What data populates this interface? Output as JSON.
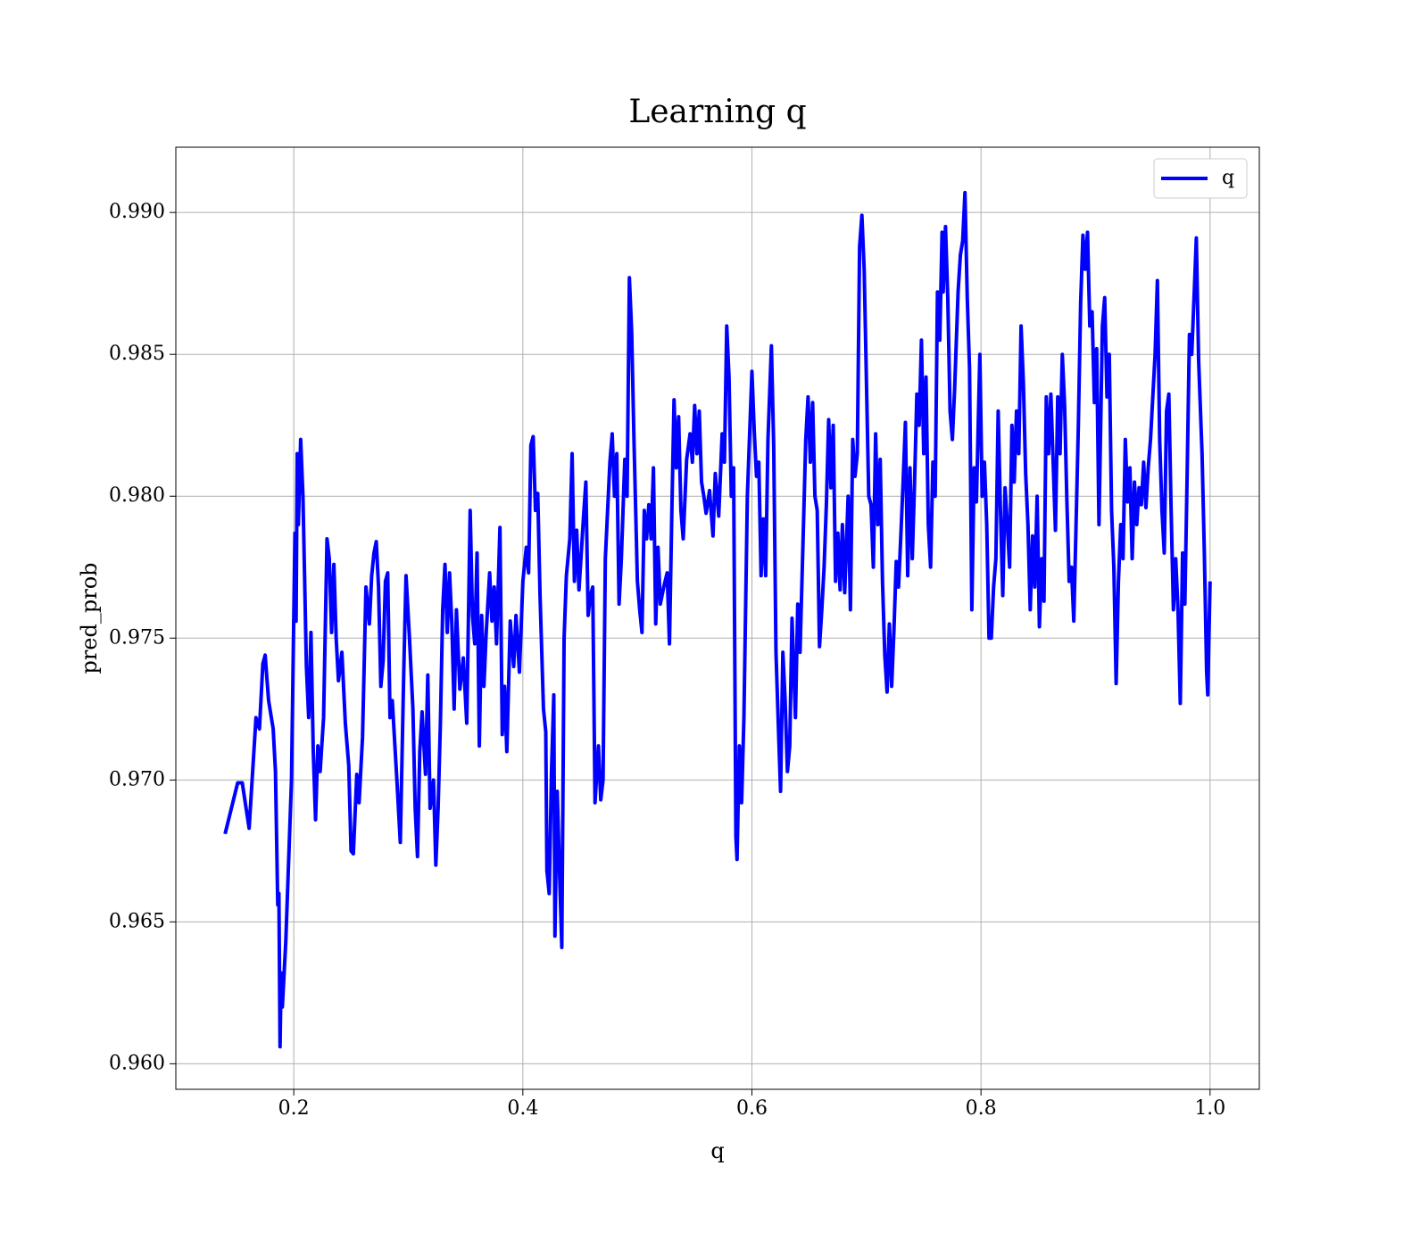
{
  "chart_data": {
    "type": "line",
    "title": "Learning q",
    "xlabel": "q",
    "ylabel": "pred_prob",
    "xlim": [
      0.097,
      1.043
    ],
    "ylim": [
      0.9591,
      0.9923
    ],
    "xticks": [
      0.2,
      0.4,
      0.6,
      0.8,
      {
        "value": 1.0,
        "label": "1.0"
      }
    ],
    "yticks": [
      {
        "value": 0.96,
        "label": "0.960"
      },
      0.965,
      {
        "value": 0.97,
        "label": "0.970"
      },
      0.975,
      {
        "value": 0.98,
        "label": "0.980"
      },
      0.985,
      {
        "value": 0.99,
        "label": "0.990"
      }
    ],
    "grid": true,
    "legend": "upper right",
    "x": [
      0.14,
      0.151,
      0.155,
      0.161,
      0.167,
      0.17,
      0.173,
      0.175,
      0.178,
      0.182,
      0.184,
      0.186,
      0.187,
      0.188,
      0.189,
      0.19,
      0.193,
      0.198,
      0.201,
      0.202,
      0.203,
      0.204,
      0.206,
      0.208,
      0.211,
      0.213,
      0.215,
      0.217,
      0.219,
      0.221,
      0.223,
      0.226,
      0.229,
      0.231,
      0.233,
      0.235,
      0.237,
      0.239,
      0.242,
      0.245,
      0.248,
      0.25,
      0.252,
      0.255,
      0.257,
      0.26,
      0.263,
      0.266,
      0.268,
      0.27,
      0.272,
      0.274,
      0.276,
      0.278,
      0.28,
      0.282,
      0.284,
      0.286,
      0.29,
      0.293,
      0.296,
      0.298,
      0.301,
      0.304,
      0.306,
      0.308,
      0.31,
      0.312,
      0.315,
      0.317,
      0.319,
      0.322,
      0.324,
      0.326,
      0.328,
      0.33,
      0.332,
      0.334,
      0.336,
      0.338,
      0.34,
      0.342,
      0.345,
      0.348,
      0.351,
      0.354,
      0.356,
      0.358,
      0.36,
      0.362,
      0.364,
      0.366,
      0.368,
      0.371,
      0.373,
      0.375,
      0.377,
      0.38,
      0.382,
      0.384,
      0.386,
      0.389,
      0.392,
      0.394,
      0.397,
      0.4,
      0.403,
      0.405,
      0.407,
      0.409,
      0.411,
      0.413,
      0.415,
      0.418,
      0.42,
      0.421,
      0.423,
      0.425,
      0.427,
      0.428,
      0.43,
      0.432,
      0.434,
      0.436,
      0.438,
      0.441,
      0.443,
      0.445,
      0.447,
      0.449,
      0.451,
      0.453,
      0.455,
      0.457,
      0.459,
      0.461,
      0.463,
      0.466,
      0.468,
      0.47,
      0.472,
      0.474,
      0.476,
      0.478,
      0.48,
      0.482,
      0.484,
      0.486,
      0.489,
      0.491,
      0.493,
      0.495,
      0.497,
      0.5,
      0.502,
      0.504,
      0.506,
      0.508,
      0.51,
      0.512,
      0.514,
      0.516,
      0.518,
      0.52,
      0.523,
      0.526,
      0.528,
      0.53,
      0.532,
      0.534,
      0.536,
      0.538,
      0.54,
      0.543,
      0.546,
      0.548,
      0.55,
      0.552,
      0.554,
      0.556,
      0.558,
      0.56,
      0.563,
      0.566,
      0.568,
      0.571,
      0.574,
      0.576,
      0.578,
      0.58,
      0.582,
      0.584,
      0.586,
      0.587,
      0.589,
      0.591,
      0.593,
      0.596,
      0.598,
      0.6,
      0.602,
      0.604,
      0.606,
      0.608,
      0.61,
      0.612,
      0.614,
      0.617,
      0.619,
      0.621,
      0.623,
      0.625,
      0.627,
      0.629,
      0.631,
      0.633,
      0.635,
      0.638,
      0.64,
      0.642,
      0.645,
      0.647,
      0.649,
      0.651,
      0.653,
      0.655,
      0.657,
      0.659,
      0.661,
      0.663,
      0.665,
      0.667,
      0.669,
      0.671,
      0.673,
      0.675,
      0.677,
      0.679,
      0.681,
      0.684,
      0.686,
      0.688,
      0.69,
      0.692,
      0.694,
      0.696,
      0.698,
      0.7,
      0.702,
      0.704,
      0.706,
      0.708,
      0.71,
      0.712,
      0.714,
      0.716,
      0.718,
      0.72,
      0.722,
      0.724,
      0.726,
      0.728,
      0.73,
      0.732,
      0.734,
      0.736,
      0.738,
      0.74,
      0.742,
      0.744,
      0.746,
      0.748,
      0.75,
      0.752,
      0.754,
      0.756,
      0.758,
      0.76,
      0.762,
      0.764,
      0.766,
      0.767,
      0.769,
      0.771,
      0.773,
      0.775,
      0.777,
      0.78,
      0.782,
      0.784,
      0.786,
      0.788,
      0.79,
      0.792,
      0.794,
      0.796,
      0.799,
      0.801,
      0.803,
      0.805,
      0.807,
      0.809,
      0.811,
      0.813,
      0.815,
      0.817,
      0.819,
      0.821,
      0.823,
      0.825,
      0.827,
      0.829,
      0.831,
      0.833,
      0.835,
      0.837,
      0.839,
      0.841,
      0.843,
      0.845,
      0.847,
      0.849,
      0.851,
      0.853,
      0.855,
      0.857,
      0.859,
      0.861,
      0.863,
      0.865,
      0.867,
      0.869,
      0.871,
      0.873,
      0.875,
      0.877,
      0.879,
      0.881,
      0.883,
      0.885,
      0.887,
      0.889,
      0.891,
      0.893,
      0.895,
      0.897,
      0.899,
      0.901,
      0.903,
      0.906,
      0.908,
      0.91,
      0.912,
      0.914,
      0.916,
      0.918,
      0.92,
      0.922,
      0.924,
      0.926,
      0.928,
      0.93,
      0.932,
      0.934,
      0.936,
      0.938,
      0.94,
      0.942,
      0.944,
      0.946,
      0.948,
      0.95,
      0.952,
      0.954,
      0.956,
      0.958,
      0.96,
      0.962,
      0.964,
      0.966,
      0.968,
      0.97,
      0.972,
      0.974,
      0.976,
      0.978,
      0.98,
      0.982,
      0.984,
      0.986,
      0.988,
      0.99,
      0.993,
      0.995,
      0.997,
      0.998,
      1.0
    ],
    "series": [
      {
        "name": "q",
        "color": "#0000ff",
        "values": [
          0.9681,
          0.9699,
          0.9699,
          0.9683,
          0.9722,
          0.9718,
          0.9741,
          0.9744,
          0.9728,
          0.9718,
          0.9703,
          0.9656,
          0.966,
          0.9606,
          0.9632,
          0.962,
          0.9643,
          0.97,
          0.9787,
          0.9756,
          0.9815,
          0.979,
          0.982,
          0.98,
          0.974,
          0.9722,
          0.9752,
          0.971,
          0.9686,
          0.9712,
          0.9703,
          0.9722,
          0.9785,
          0.9778,
          0.9752,
          0.9776,
          0.975,
          0.9735,
          0.9745,
          0.972,
          0.9705,
          0.9675,
          0.9674,
          0.9702,
          0.9692,
          0.9715,
          0.9768,
          0.9755,
          0.9772,
          0.978,
          0.9784,
          0.9768,
          0.9733,
          0.9742,
          0.977,
          0.9773,
          0.9722,
          0.9728,
          0.97,
          0.9678,
          0.9738,
          0.9772,
          0.975,
          0.9725,
          0.969,
          0.9673,
          0.971,
          0.9724,
          0.9702,
          0.9737,
          0.969,
          0.97,
          0.967,
          0.969,
          0.972,
          0.976,
          0.9776,
          0.9752,
          0.9773,
          0.9755,
          0.9725,
          0.976,
          0.9732,
          0.9743,
          0.972,
          0.9795,
          0.9758,
          0.9748,
          0.978,
          0.9712,
          0.9758,
          0.9733,
          0.9752,
          0.9773,
          0.9756,
          0.9768,
          0.9748,
          0.9789,
          0.9716,
          0.9733,
          0.971,
          0.9756,
          0.974,
          0.9758,
          0.9738,
          0.977,
          0.9782,
          0.9773,
          0.9818,
          0.9821,
          0.9795,
          0.9801,
          0.9765,
          0.9725,
          0.9717,
          0.9668,
          0.966,
          0.9703,
          0.973,
          0.9645,
          0.9696,
          0.9668,
          0.9641,
          0.975,
          0.9772,
          0.9785,
          0.9815,
          0.977,
          0.9788,
          0.9767,
          0.978,
          0.9793,
          0.9805,
          0.9758,
          0.9765,
          0.9768,
          0.9692,
          0.9712,
          0.9693,
          0.97,
          0.9778,
          0.9795,
          0.9812,
          0.9822,
          0.98,
          0.9815,
          0.9762,
          0.9778,
          0.9813,
          0.98,
          0.9877,
          0.9858,
          0.982,
          0.977,
          0.976,
          0.9752,
          0.9795,
          0.9785,
          0.9797,
          0.9785,
          0.981,
          0.9755,
          0.9782,
          0.9762,
          0.9768,
          0.9773,
          0.9748,
          0.9793,
          0.9834,
          0.981,
          0.9828,
          0.9795,
          0.9785,
          0.9813,
          0.9822,
          0.9812,
          0.9832,
          0.9815,
          0.983,
          0.9805,
          0.98,
          0.9794,
          0.9802,
          0.9786,
          0.9808,
          0.9793,
          0.9822,
          0.9812,
          0.986,
          0.9842,
          0.98,
          0.981,
          0.968,
          0.9672,
          0.9712,
          0.9692,
          0.9722,
          0.98,
          0.9822,
          0.9844,
          0.9823,
          0.9807,
          0.9812,
          0.9772,
          0.9792,
          0.9772,
          0.982,
          0.9853,
          0.9818,
          0.9745,
          0.972,
          0.9696,
          0.9745,
          0.9728,
          0.9703,
          0.9712,
          0.9757,
          0.9722,
          0.9762,
          0.9745,
          0.979,
          0.982,
          0.9835,
          0.9812,
          0.9833,
          0.98,
          0.9795,
          0.9747,
          0.976,
          0.9775,
          0.9797,
          0.9827,
          0.9803,
          0.9825,
          0.977,
          0.9787,
          0.9767,
          0.979,
          0.9766,
          0.98,
          0.976,
          0.982,
          0.9807,
          0.9815,
          0.9888,
          0.9899,
          0.988,
          0.984,
          0.98,
          0.9797,
          0.9775,
          0.9822,
          0.979,
          0.9813,
          0.977,
          0.9744,
          0.9731,
          0.9755,
          0.9733,
          0.9753,
          0.9777,
          0.9768,
          0.9786,
          0.9805,
          0.9826,
          0.9772,
          0.981,
          0.9778,
          0.9805,
          0.9836,
          0.9825,
          0.9855,
          0.9815,
          0.9842,
          0.979,
          0.9775,
          0.9812,
          0.98,
          0.9872,
          0.9855,
          0.9893,
          0.9872,
          0.9895,
          0.987,
          0.983,
          0.982,
          0.9838,
          0.9872,
          0.9885,
          0.989,
          0.9907,
          0.987,
          0.9845,
          0.976,
          0.981,
          0.9798,
          0.985,
          0.98,
          0.9812,
          0.979,
          0.975,
          0.975,
          0.9768,
          0.9778,
          0.983,
          0.9795,
          0.9765,
          0.9803,
          0.979,
          0.9775,
          0.9825,
          0.9805,
          0.983,
          0.9815,
          0.986,
          0.984,
          0.9808,
          0.979,
          0.976,
          0.9786,
          0.9768,
          0.98,
          0.9754,
          0.9778,
          0.9763,
          0.9835,
          0.9815,
          0.9836,
          0.9812,
          0.9788,
          0.9835,
          0.9815,
          0.985,
          0.9832,
          0.9798,
          0.977,
          0.9775,
          0.9756,
          0.979,
          0.9825,
          0.9868,
          0.9892,
          0.988,
          0.9893,
          0.986,
          0.9865,
          0.9833,
          0.9852,
          0.979,
          0.986,
          0.987,
          0.9835,
          0.985,
          0.9795,
          0.9775,
          0.9734,
          0.977,
          0.979,
          0.9778,
          0.982,
          0.9798,
          0.981,
          0.9778,
          0.9805,
          0.979,
          0.9803,
          0.9797,
          0.9812,
          0.9796,
          0.981,
          0.982,
          0.9835,
          0.985,
          0.9876,
          0.982,
          0.9795,
          0.978,
          0.983,
          0.9836,
          0.9795,
          0.976,
          0.9778,
          0.976,
          0.9727,
          0.978,
          0.9762,
          0.9808,
          0.9857,
          0.985,
          0.987,
          0.9891,
          0.9848,
          0.9815,
          0.978,
          0.9738,
          0.973,
          0.977
        ]
      }
    ]
  }
}
